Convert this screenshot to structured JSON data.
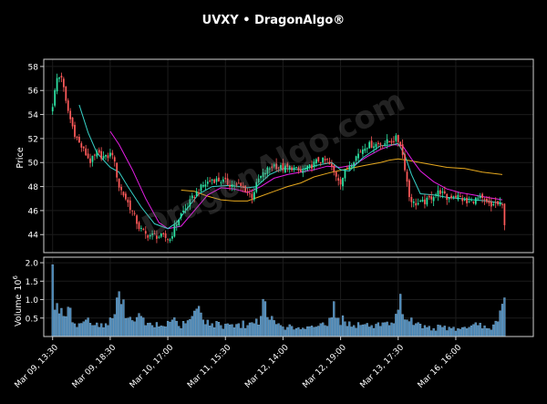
{
  "title": "UVXY • DragonAlgo®",
  "watermark": "DragonAlgo.com",
  "colors": {
    "background": "#000000",
    "frame": "#cfcfcf",
    "up": "#2ee6a6",
    "down": "#ff5a5a",
    "ma_fast": "#37d2c8",
    "ma_mid": "#e61ee6",
    "ma_slow": "#e6a81e",
    "volume": "#4a88b8"
  },
  "chart_data": [
    {
      "type": "candlestick",
      "ylabel": "Price",
      "ylim": [
        42.5,
        58.6
      ],
      "yticks": [
        44,
        46,
        48,
        50,
        52,
        54,
        56,
        58
      ],
      "xlim": [
        -4,
        217
      ],
      "grid": true,
      "x_tick_labels": [
        {
          "x": 0,
          "label": "Mar 09, 13:30"
        },
        {
          "x": 26,
          "label": "Mar 09, 18:30"
        },
        {
          "x": 52,
          "label": "Mar 10, 17:00"
        },
        {
          "x": 78,
          "label": "Mar 11, 15:30"
        },
        {
          "x": 104,
          "label": "Mar 12, 14:00"
        },
        {
          "x": 130,
          "label": "Mar 12, 19:00"
        },
        {
          "x": 156,
          "label": "Mar 13, 17:30"
        },
        {
          "x": 182,
          "label": "Mar 16, 16:00"
        }
      ],
      "close_anchors": [
        [
          0,
          54.8
        ],
        [
          2,
          57.0
        ],
        [
          4,
          57.2
        ],
        [
          6,
          55.0
        ],
        [
          8,
          53.6
        ],
        [
          10,
          52.4
        ],
        [
          12,
          51.6
        ],
        [
          14,
          51.0
        ],
        [
          17,
          50.1
        ],
        [
          20,
          50.7
        ],
        [
          24,
          50.4
        ],
        [
          27,
          50.8
        ],
        [
          30,
          48.0
        ],
        [
          33,
          47.0
        ],
        [
          36,
          45.9
        ],
        [
          39,
          44.6
        ],
        [
          42,
          44.0
        ],
        [
          46,
          43.9
        ],
        [
          50,
          43.8
        ],
        [
          53,
          43.6
        ],
        [
          55,
          44.6
        ],
        [
          58,
          45.7
        ],
        [
          61,
          46.4
        ],
        [
          64,
          47.3
        ],
        [
          68,
          48.1
        ],
        [
          72,
          48.6
        ],
        [
          76,
          48.5
        ],
        [
          80,
          48.2
        ],
        [
          84,
          48.1
        ],
        [
          88,
          47.6
        ],
        [
          90,
          47.2
        ],
        [
          93,
          48.6
        ],
        [
          97,
          49.4
        ],
        [
          100,
          49.8
        ],
        [
          104,
          49.5
        ],
        [
          108,
          49.6
        ],
        [
          112,
          49.2
        ],
        [
          116,
          49.6
        ],
        [
          120,
          50.2
        ],
        [
          124,
          50.1
        ],
        [
          127,
          49.2
        ],
        [
          130,
          48.4
        ],
        [
          133,
          49.6
        ],
        [
          137,
          50.5
        ],
        [
          141,
          51.4
        ],
        [
          145,
          51.5
        ],
        [
          149,
          51.6
        ],
        [
          153,
          51.8
        ],
        [
          155,
          52.0
        ],
        [
          157,
          51.6
        ],
        [
          159,
          49.6
        ],
        [
          161,
          47.2
        ],
        [
          163,
          46.6
        ],
        [
          166,
          46.6
        ],
        [
          169,
          46.8
        ],
        [
          172,
          47.3
        ],
        [
          175,
          47.6
        ],
        [
          178,
          47.0
        ],
        [
          181,
          47.3
        ],
        [
          184,
          47.1
        ],
        [
          187,
          46.6
        ],
        [
          190,
          46.9
        ],
        [
          193,
          47.0
        ],
        [
          196,
          46.6
        ],
        [
          198,
          46.3
        ],
        [
          199,
          46.6
        ],
        [
          203,
          46.4
        ],
        [
          204,
          45.0
        ]
      ],
      "series": [
        {
          "name": "MA fast",
          "points": [
            [
              12,
              54.8
            ],
            [
              16,
              52.5
            ],
            [
              20,
              50.8
            ],
            [
              26,
              49.6
            ],
            [
              30,
              49.2
            ],
            [
              34,
              48.0
            ],
            [
              40,
              46.3
            ],
            [
              46,
              44.9
            ],
            [
              52,
              44.5
            ],
            [
              56,
              45.0
            ],
            [
              60,
              46.0
            ],
            [
              66,
              47.4
            ],
            [
              72,
              48.0
            ],
            [
              80,
              48.1
            ],
            [
              88,
              47.9
            ],
            [
              92,
              48.0
            ],
            [
              98,
              49.0
            ],
            [
              104,
              49.5
            ],
            [
              112,
              49.4
            ],
            [
              120,
              49.8
            ],
            [
              126,
              50.0
            ],
            [
              130,
              49.4
            ],
            [
              134,
              49.3
            ],
            [
              140,
              50.4
            ],
            [
              148,
              51.4
            ],
            [
              154,
              51.5
            ],
            [
              156,
              51.6
            ],
            [
              159,
              50.6
            ],
            [
              162,
              49.0
            ],
            [
              166,
              47.4
            ],
            [
              172,
              47.3
            ],
            [
              178,
              47.1
            ],
            [
              184,
              47.0
            ],
            [
              190,
              46.9
            ],
            [
              196,
              46.8
            ],
            [
              203,
              46.6
            ]
          ]
        },
        {
          "name": "MA mid",
          "points": [
            [
              26,
              52.6
            ],
            [
              30,
              51.5
            ],
            [
              36,
              49.4
            ],
            [
              42,
              47.0
            ],
            [
              48,
              45.0
            ],
            [
              52,
              44.5
            ],
            [
              58,
              44.7
            ],
            [
              64,
              46.0
            ],
            [
              70,
              47.3
            ],
            [
              76,
              47.9
            ],
            [
              82,
              47.8
            ],
            [
              88,
              47.5
            ],
            [
              94,
              48.0
            ],
            [
              100,
              48.7
            ],
            [
              106,
              49.0
            ],
            [
              112,
              49.2
            ],
            [
              118,
              49.4
            ],
            [
              124,
              49.7
            ],
            [
              130,
              49.6
            ],
            [
              136,
              49.8
            ],
            [
              142,
              50.5
            ],
            [
              148,
              51.1
            ],
            [
              154,
              51.5
            ],
            [
              158,
              51.4
            ],
            [
              162,
              50.3
            ],
            [
              166,
              49.3
            ],
            [
              172,
              48.4
            ],
            [
              178,
              47.8
            ],
            [
              184,
              47.5
            ],
            [
              190,
              47.3
            ],
            [
              196,
              47.1
            ],
            [
              203,
              46.9
            ]
          ]
        },
        {
          "name": "MA slow",
          "points": [
            [
              58,
              47.7
            ],
            [
              64,
              47.6
            ],
            [
              70,
              47.2
            ],
            [
              76,
              46.9
            ],
            [
              82,
              46.8
            ],
            [
              88,
              46.8
            ],
            [
              94,
              47.2
            ],
            [
              100,
              47.6
            ],
            [
              106,
              48.0
            ],
            [
              112,
              48.3
            ],
            [
              118,
              48.8
            ],
            [
              126,
              49.2
            ],
            [
              134,
              49.5
            ],
            [
              142,
              49.8
            ],
            [
              148,
              50.0
            ],
            [
              152,
              50.2
            ],
            [
              156,
              50.3
            ],
            [
              160,
              50.2
            ],
            [
              166,
              50.0
            ],
            [
              172,
              49.8
            ],
            [
              178,
              49.6
            ],
            [
              186,
              49.5
            ],
            [
              194,
              49.2
            ],
            [
              203,
              49.0
            ]
          ]
        }
      ]
    },
    {
      "type": "bar",
      "ylabel": "Volume",
      "exponent": 6,
      "ylim": [
        0,
        2.15
      ],
      "yticks": [
        0.5,
        1.0,
        1.5,
        2.0
      ],
      "ytick_labels": [
        "0.5",
        "1.0",
        "1.5",
        "2.0"
      ],
      "volume_anchors": [
        [
          0,
          1.95
        ],
        [
          1,
          0.72
        ],
        [
          2,
          0.9
        ],
        [
          3,
          0.62
        ],
        [
          5,
          0.55
        ],
        [
          7,
          0.8
        ],
        [
          9,
          0.38
        ],
        [
          12,
          0.35
        ],
        [
          15,
          0.45
        ],
        [
          18,
          0.3
        ],
        [
          22,
          0.35
        ],
        [
          25,
          0.3
        ],
        [
          28,
          0.6
        ],
        [
          30,
          1.22
        ],
        [
          32,
          1.0
        ],
        [
          34,
          0.5
        ],
        [
          37,
          0.4
        ],
        [
          40,
          0.55
        ],
        [
          42,
          0.3
        ],
        [
          45,
          0.3
        ],
        [
          50,
          0.28
        ],
        [
          54,
          0.45
        ],
        [
          57,
          0.28
        ],
        [
          60,
          0.35
        ],
        [
          63,
          0.55
        ],
        [
          65,
          0.75
        ],
        [
          66,
          0.82
        ],
        [
          68,
          0.45
        ],
        [
          72,
          0.35
        ],
        [
          76,
          0.3
        ],
        [
          80,
          0.32
        ],
        [
          84,
          0.35
        ],
        [
          88,
          0.3
        ],
        [
          91,
          0.35
        ],
        [
          94,
          0.55
        ],
        [
          96,
          0.95
        ],
        [
          98,
          0.45
        ],
        [
          102,
          0.35
        ],
        [
          106,
          0.25
        ],
        [
          110,
          0.22
        ],
        [
          114,
          0.2
        ],
        [
          118,
          0.25
        ],
        [
          121,
          0.35
        ],
        [
          123,
          0.3
        ],
        [
          125,
          0.5
        ],
        [
          127,
          0.95
        ],
        [
          129,
          0.5
        ],
        [
          132,
          0.4
        ],
        [
          136,
          0.3
        ],
        [
          140,
          0.32
        ],
        [
          144,
          0.3
        ],
        [
          148,
          0.28
        ],
        [
          152,
          0.3
        ],
        [
          154,
          0.35
        ],
        [
          156,
          0.72
        ],
        [
          157,
          1.15
        ],
        [
          158,
          0.6
        ],
        [
          160,
          0.45
        ],
        [
          164,
          0.35
        ],
        [
          168,
          0.3
        ],
        [
          172,
          0.22
        ],
        [
          176,
          0.25
        ],
        [
          180,
          0.22
        ],
        [
          184,
          0.2
        ],
        [
          188,
          0.25
        ],
        [
          192,
          0.3
        ],
        [
          196,
          0.22
        ],
        [
          198,
          0.18
        ],
        [
          199,
          0.32
        ],
        [
          201,
          0.4
        ],
        [
          203,
          0.88
        ]
      ]
    }
  ]
}
